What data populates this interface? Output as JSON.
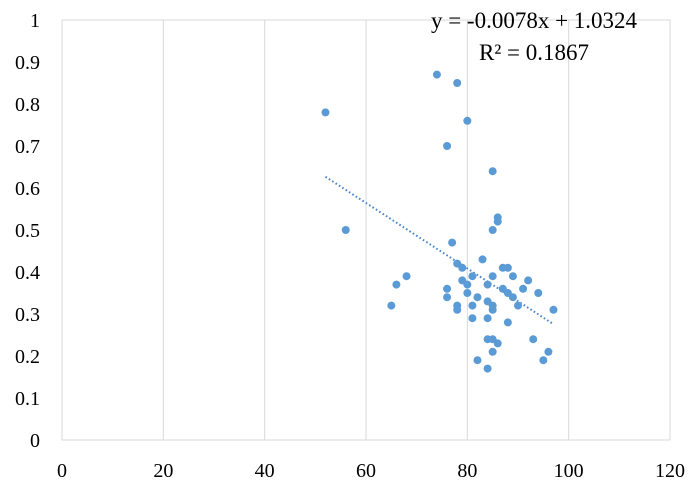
{
  "chart_data": {
    "type": "scatter",
    "title": "",
    "xlabel": "",
    "ylabel": "",
    "xlim": [
      0,
      120
    ],
    "ylim": [
      0,
      1
    ],
    "x_ticks": [
      0,
      20,
      40,
      60,
      80,
      100,
      120
    ],
    "y_ticks": [
      0,
      0.1,
      0.2,
      0.3,
      0.4,
      0.5,
      0.6,
      0.7,
      0.8,
      0.9,
      1
    ],
    "x_tick_labels": [
      "0",
      "20",
      "40",
      "60",
      "80",
      "100",
      "120"
    ],
    "y_tick_labels": [
      "0",
      "0.1",
      "0.2",
      "0.3",
      "0.4",
      "0.5",
      "0.6",
      "0.7",
      "0.8",
      "0.9",
      "1"
    ],
    "grid": {
      "vertical": true,
      "horizontal": false
    },
    "legend": "none",
    "colors": {
      "marker": "#5b9bd5",
      "trendline": "#4a86c5",
      "grid": "#d9d9d9"
    },
    "series": [
      {
        "points": [
          [
            52,
            0.78
          ],
          [
            56,
            0.5
          ],
          [
            65,
            0.32
          ],
          [
            66,
            0.37
          ],
          [
            68,
            0.39
          ],
          [
            74,
            0.87
          ],
          [
            76,
            0.7
          ],
          [
            76,
            0.36
          ],
          [
            76,
            0.34
          ],
          [
            77,
            0.47
          ],
          [
            78,
            0.85
          ],
          [
            78,
            0.42
          ],
          [
            78,
            0.31
          ],
          [
            78,
            0.32
          ],
          [
            79,
            0.41
          ],
          [
            79,
            0.38
          ],
          [
            80,
            0.76
          ],
          [
            80,
            0.37
          ],
          [
            80,
            0.35
          ],
          [
            81,
            0.39
          ],
          [
            81,
            0.32
          ],
          [
            81,
            0.29
          ],
          [
            82,
            0.34
          ],
          [
            82,
            0.19
          ],
          [
            83,
            0.43
          ],
          [
            84,
            0.37
          ],
          [
            84,
            0.33
          ],
          [
            84,
            0.29
          ],
          [
            84,
            0.24
          ],
          [
            84,
            0.17
          ],
          [
            85,
            0.64
          ],
          [
            85,
            0.5
          ],
          [
            85,
            0.39
          ],
          [
            85,
            0.32
          ],
          [
            85,
            0.31
          ],
          [
            85,
            0.24
          ],
          [
            85,
            0.21
          ],
          [
            86,
            0.53
          ],
          [
            86,
            0.52
          ],
          [
            86,
            0.23
          ],
          [
            87,
            0.41
          ],
          [
            87,
            0.36
          ],
          [
            88,
            0.41
          ],
          [
            88,
            0.35
          ],
          [
            88,
            0.28
          ],
          [
            89,
            0.39
          ],
          [
            89,
            0.34
          ],
          [
            90,
            0.32
          ],
          [
            91,
            0.36
          ],
          [
            92,
            0.38
          ],
          [
            93,
            0.24
          ],
          [
            94,
            0.35
          ],
          [
            95,
            0.19
          ],
          [
            96,
            0.21
          ],
          [
            97,
            0.31
          ]
        ]
      }
    ],
    "trendline": {
      "type": "linear",
      "style": "dotted",
      "slope": -0.0078,
      "intercept": 1.0324,
      "x_range": [
        52,
        97
      ],
      "equation_label": "y = -0.0078x + 1.0324",
      "r2_label": "R² = 0.1867"
    }
  }
}
